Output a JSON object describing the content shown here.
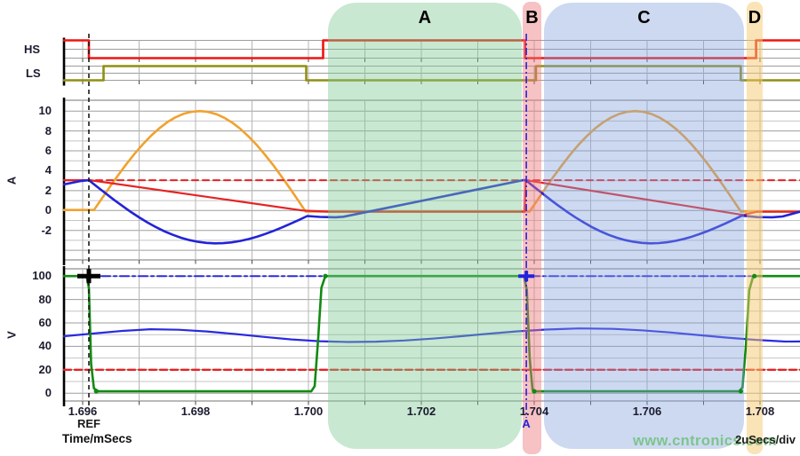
{
  "chart_data": {
    "type": "line",
    "title": "",
    "x_axis": {
      "label": "Time/mSecs",
      "per_div": "2uSecs/div",
      "t_start": 1.69567,
      "t_end": 1.70871,
      "grid_step_us": 1,
      "ticks": [
        {
          "t": 1.696,
          "label": "1.696"
        },
        {
          "t": 1.698,
          "label": "1.698"
        },
        {
          "t": 1.7,
          "label": "1.700"
        },
        {
          "t": 1.702,
          "label": "1.702"
        },
        {
          "t": 1.704,
          "label": "1.704"
        },
        {
          "t": 1.706,
          "label": "1.706"
        },
        {
          "t": 1.708,
          "label": "1.708"
        }
      ]
    },
    "y_axes": [
      {
        "id": "cur",
        "label": "A",
        "ticks": [
          {
            "v": 10,
            "label": "10"
          },
          {
            "v": 8,
            "label": "8"
          },
          {
            "v": 6,
            "label": "6"
          },
          {
            "v": 4,
            "label": "4"
          },
          {
            "v": 2,
            "label": "2"
          },
          {
            "v": 0,
            "label": "0"
          },
          {
            "v": -2,
            "label": "-2"
          }
        ]
      },
      {
        "id": "volt",
        "label": "V",
        "ticks": [
          {
            "v": 100,
            "label": "100"
          },
          {
            "v": 80,
            "label": "80"
          },
          {
            "v": 60,
            "label": "60"
          },
          {
            "v": 40,
            "label": "40"
          },
          {
            "v": 20,
            "label": "20"
          },
          {
            "v": 0,
            "label": "0"
          }
        ]
      }
    ],
    "digital_labels": [
      {
        "id": "hs",
        "label": "HS"
      },
      {
        "id": "ls",
        "label": "LS"
      }
    ],
    "traces": [
      {
        "id": "hs",
        "scale": "hs",
        "color": "#ee1511",
        "width": 2.6,
        "segs": [
          {
            "pts": [
              [
                1.69567,
                1
              ],
              [
                1.69611,
                1
              ],
              [
                1.69611,
                0
              ],
              [
                1.70026,
                0
              ],
              [
                1.70026,
                1
              ],
              [
                1.70384,
                1
              ],
              [
                1.70384,
                0
              ],
              [
                1.70793,
                0
              ],
              [
                1.70793,
                1
              ],
              [
                1.70871,
                1
              ]
            ]
          }
        ]
      },
      {
        "id": "ls",
        "scale": "ls",
        "color": "#8f8f12",
        "width": 2.6,
        "segs": [
          {
            "pts": [
              [
                1.69567,
                0
              ],
              [
                1.69637,
                0
              ],
              [
                1.69637,
                1
              ],
              [
                1.69996,
                1
              ],
              [
                1.69996,
                0
              ],
              [
                1.70403,
                0
              ],
              [
                1.70403,
                1
              ],
              [
                1.70766,
                1
              ],
              [
                1.70766,
                0
              ],
              [
                1.70871,
                0
              ]
            ]
          }
        ]
      },
      {
        "id": "i_orange",
        "scale": "cur",
        "color": "#f0a22e",
        "width": 2.6,
        "segs": [
          {
            "flat": [
              1.69567,
              1.6962,
              0.05
            ]
          },
          {
            "bump": [
              1.6962,
              1.69995,
              0.05,
              10.0,
              -0.1
            ]
          },
          {
            "flat": [
              1.69995,
              1.70392,
              -0.1
            ]
          },
          {
            "bump": [
              1.70392,
              1.70766,
              -0.1,
              10.0,
              -0.1
            ]
          },
          {
            "flat": [
              1.70766,
              1.70871,
              -0.1
            ]
          }
        ]
      },
      {
        "id": "i_ref_dashed",
        "scale": "cur",
        "color": "#e62222",
        "width": 2.0,
        "dash": "7,5",
        "segs": [
          {
            "flat": [
              1.69567,
              1.70871,
              3.05
            ]
          }
        ]
      },
      {
        "id": "i_ramp_red",
        "scale": "cur",
        "color": "#e62222",
        "width": 2.2,
        "segs": [
          {
            "pts": [
              [
                1.69567,
                3.05
              ],
              [
                1.69613,
                3.05
              ],
              [
                1.6999,
                0.0
              ],
              [
                1.70035,
                -0.12
              ],
              [
                1.70383,
                -0.12
              ],
              [
                1.70385,
                3.05
              ],
              [
                1.7077,
                -0.45
              ],
              [
                1.70795,
                -0.12
              ],
              [
                1.70871,
                -0.12
              ]
            ]
          }
        ]
      },
      {
        "id": "i_blue",
        "scale": "cur",
        "color": "#2323d8",
        "width": 2.6,
        "segs": [
          {
            "pts": [
              [
                1.69567,
                2.62
              ],
              [
                1.69595,
                2.95
              ],
              [
                1.69611,
                3.05
              ]
            ]
          },
          {
            "bump": [
              1.69611,
              1.69998,
              3.05,
              -3.15,
              -0.55
            ]
          },
          {
            "pts": [
              [
                1.69998,
                -0.55
              ],
              [
                1.7002,
                -0.64
              ],
              [
                1.70048,
                -0.68
              ],
              [
                1.70062,
                -0.62
              ],
              [
                1.7038,
                3.05
              ]
            ]
          },
          {
            "bump": [
              1.70385,
              1.70768,
              3.05,
              -3.15,
              -0.52
            ]
          },
          {
            "pts": [
              [
                1.70768,
                -0.52
              ],
              [
                1.70795,
                -0.66
              ],
              [
                1.70822,
                -0.68
              ],
              [
                1.7084,
                -0.6
              ],
              [
                1.70871,
                -0.12
              ]
            ]
          }
        ]
      },
      {
        "id": "v_bus_dashdot",
        "scale": "volt",
        "color": "#2a2ae0",
        "width": 2.0,
        "dash": "10,4,3,4",
        "segs": [
          {
            "flat": [
              1.69567,
              1.70871,
              100
            ]
          }
        ]
      },
      {
        "id": "v_out_blue",
        "scale": "volt",
        "color": "#2a2ae0",
        "width": 2.2,
        "segs": [
          {
            "pts": [
              [
                1.69567,
                48.6
              ],
              [
                1.6962,
                51.0
              ],
              [
                1.6967,
                53.2
              ],
              [
                1.6972,
                54.6
              ],
              [
                1.6977,
                54.2
              ],
              [
                1.6982,
                52.7
              ],
              [
                1.6987,
                50.5
              ],
              [
                1.6992,
                48.1
              ],
              [
                1.6997,
                45.9
              ],
              [
                1.7002,
                44.4
              ],
              [
                1.7007,
                43.7
              ],
              [
                1.7012,
                44.0
              ],
              [
                1.7017,
                45.0
              ],
              [
                1.7022,
                46.6
              ],
              [
                1.7027,
                48.6
              ],
              [
                1.7032,
                50.8
              ],
              [
                1.7037,
                52.8
              ],
              [
                1.7042,
                54.3
              ],
              [
                1.7048,
                55.3
              ],
              [
                1.7054,
                54.9
              ],
              [
                1.7059,
                53.7
              ],
              [
                1.7064,
                51.9
              ],
              [
                1.7069,
                49.7
              ],
              [
                1.7074,
                47.5
              ],
              [
                1.7079,
                45.6
              ],
              [
                1.70845,
                44.1
              ],
              [
                1.70871,
                44.2
              ]
            ]
          }
        ]
      },
      {
        "id": "v_ref_red",
        "scale": "volt",
        "color": "#e62222",
        "width": 2.4,
        "dash": "8,4",
        "segs": [
          {
            "flat": [
              1.69567,
              1.70871,
              20
            ]
          }
        ]
      },
      {
        "id": "v_sw_green",
        "scale": "volt",
        "color": "#128a12",
        "width": 2.6,
        "segs": [
          {
            "pts": [
              [
                1.69567,
                100
              ],
              [
                1.69607,
                100
              ],
              [
                1.69611,
                90
              ],
              [
                1.69615,
                25
              ],
              [
                1.6962,
                4
              ],
              [
                1.69628,
                1.6
              ],
              [
                1.70005,
                1.6
              ],
              [
                1.70011,
                6
              ],
              [
                1.70017,
                45
              ],
              [
                1.70023,
                90
              ],
              [
                1.7003,
                100
              ],
              [
                1.70382,
                100
              ],
              [
                1.70387,
                88
              ],
              [
                1.70392,
                30
              ],
              [
                1.70397,
                3
              ],
              [
                1.70404,
                1.6
              ],
              [
                1.70763,
                1.6
              ],
              [
                1.70769,
                5
              ],
              [
                1.70775,
                40
              ],
              [
                1.70781,
                88
              ],
              [
                1.70788,
                100
              ],
              [
                1.70871,
                100
              ]
            ]
          }
        ]
      }
    ],
    "regions": [
      {
        "label": "A",
        "t0": 1.70034,
        "t1": 1.70378,
        "fill": "rgba(125,200,145,0.42)",
        "style": "wide"
      },
      {
        "label": "B",
        "t0": 1.7038,
        "t1": 1.70412,
        "fill": "rgba(238,120,125,0.45)",
        "style": "narrow"
      },
      {
        "label": "C",
        "t0": 1.70417,
        "t1": 1.70772,
        "fill": "rgba(130,160,220,0.40)",
        "style": "wide"
      },
      {
        "label": "D",
        "t0": 1.70777,
        "t1": 1.70804,
        "fill": "rgba(246,200,110,0.50)",
        "style": "narrow"
      }
    ],
    "cursors": [
      {
        "id": "ref",
        "t": 1.69611,
        "label": "REF",
        "color": "#1a1a1a",
        "dash": "5,4"
      },
      {
        "id": "a",
        "t": 1.70386,
        "label": "A",
        "color": "#2525d5",
        "dash": "8,3,2,3"
      }
    ],
    "markers": [
      {
        "shape": "plus",
        "t": 1.69611,
        "v": 100,
        "scale": "volt",
        "color": "#000000",
        "hw": 13,
        "hh": 8,
        "sw": 5
      },
      {
        "shape": "plus",
        "t": 1.70386,
        "v": 100,
        "scale": "volt",
        "color": "#2222dd",
        "hw": 9,
        "hh": 6,
        "sw": 4
      },
      {
        "shape": "dot",
        "t": 1.69624,
        "v": 1.6,
        "scale": "volt",
        "color": "#128a12",
        "r": 2.6
      },
      {
        "shape": "dot",
        "t": 1.7003,
        "v": 100,
        "scale": "volt",
        "color": "#128a12",
        "r": 2.6
      },
      {
        "shape": "dot",
        "t": 1.704,
        "v": 1.6,
        "scale": "volt",
        "color": "#128a12",
        "r": 2.6
      },
      {
        "shape": "dot",
        "t": 1.70766,
        "v": 1.6,
        "scale": "volt",
        "color": "#128a12",
        "r": 2.6
      },
      {
        "shape": "dot",
        "t": 1.7079,
        "v": 100,
        "scale": "volt",
        "color": "#128a12",
        "r": 2.6
      }
    ],
    "watermark": "www.cntronics.com"
  }
}
